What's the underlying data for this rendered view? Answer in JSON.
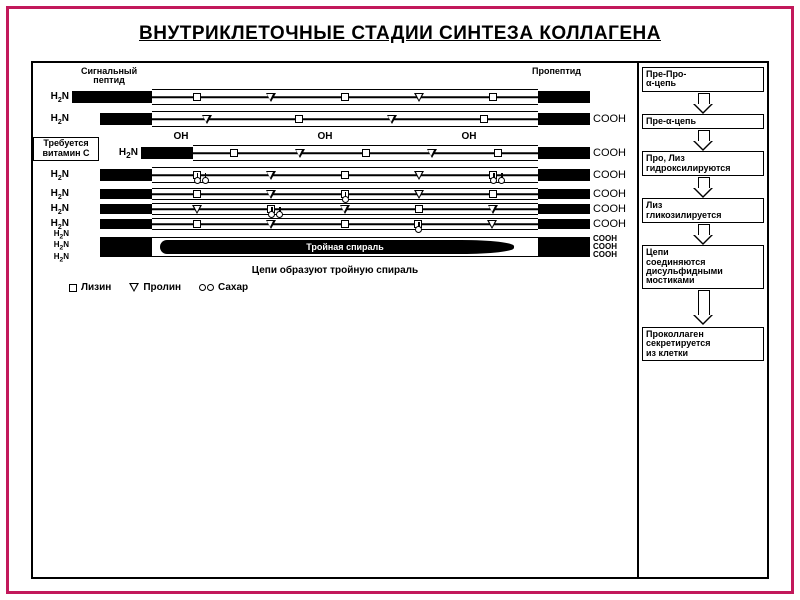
{
  "frame_border_color": "#c2185b",
  "title": "ВНУТРИКЛЕТОЧНЫЕ СТАДИИ СИНТЕЗА КОЛЛАГЕНА",
  "title_fontsize": 19,
  "top_labels": {
    "signal": "Сигнальный\nпептид",
    "propeptide": "Пропептид"
  },
  "terminals": {
    "n": "H₂N",
    "c": "COOH"
  },
  "oh_label": "OH",
  "vitamin_note": "Требуется витамин С",
  "helix_label": "Тройная спираль",
  "helix_caption": "Цепи образуют тройную спираль",
  "legend": {
    "lysine": "Лизин",
    "proline": "Пролин",
    "sugar": "Сахар"
  },
  "right_steps": [
    "Пре-Про-\nα-цепь",
    "Пре-α-цепь",
    "Про, Лиз\nгидроксилируются",
    "Лиз\nгликозилируется",
    "Цепи\nсоединяются\nдисульфидными\nмостиками",
    "Проколлаген\nсекретируется\nиз клетки"
  ],
  "colors": {
    "text": "#000000",
    "frame": "#c2185b",
    "bg": "#ffffff"
  },
  "symbols": {
    "square": "lysine",
    "triangle": "proline",
    "circle_pair": "sugar"
  }
}
